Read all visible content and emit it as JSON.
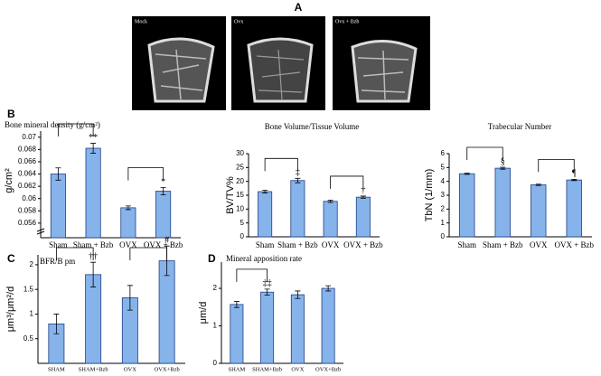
{
  "panel_a": {
    "label": "A",
    "images": [
      {
        "label": "Mock"
      },
      {
        "label": "Ovx"
      },
      {
        "label": "Ovx + Bzb"
      }
    ]
  },
  "chart_data": [
    {
      "type": "bar",
      "panel": "B",
      "title": "Bone mineral density (g/cm²)",
      "y_label": "g/cm²",
      "categories": [
        "Sham",
        "Sham + Bzb",
        "OVX",
        "OVX + Bzb"
      ],
      "values": [
        0.064,
        0.0682,
        0.0585,
        0.0612
      ],
      "errors": [
        0.001,
        0.0008,
        0.0003,
        0.0006
      ],
      "annotations": [
        null,
        "**",
        null,
        "*"
      ],
      "brackets": [
        [
          0,
          1
        ],
        [
          2,
          3
        ]
      ],
      "ylim": [
        0.0548,
        0.071
      ],
      "yticks": [
        0.056,
        0.058,
        0.06,
        0.062,
        0.064,
        0.066,
        0.068,
        0.07
      ],
      "axis_break": true,
      "color": "#86b4ea",
      "edge": "#1f3f8a"
    },
    {
      "type": "bar",
      "title": "Bone Volume/Tissue Volume",
      "y_label": "BV/TV%",
      "categories": [
        "Sham",
        "Sham + Bzb",
        "OVX",
        "OVX + Bzb"
      ],
      "values": [
        16.3,
        20.3,
        12.8,
        14.3
      ],
      "errors": [
        0.5,
        0.8,
        0.4,
        0.4
      ],
      "annotations": [
        null,
        "‡",
        null,
        "†"
      ],
      "brackets": [
        [
          0,
          1
        ],
        [
          2,
          3
        ]
      ],
      "ylim": [
        0,
        30
      ],
      "yticks": [
        0,
        5,
        10,
        15,
        20,
        25,
        30
      ],
      "color": "#86b4ea",
      "edge": "#1f3f8a"
    },
    {
      "type": "bar",
      "title": "Trabecular Number",
      "y_label": "TbN (1/mm)",
      "categories": [
        "Sham",
        "Sham + Bzb",
        "OVX",
        "OVX + Bzb"
      ],
      "values": [
        4.55,
        4.95,
        3.75,
        4.1
      ],
      "errors": [
        0.05,
        0.07,
        0.05,
        0.05
      ],
      "annotations": [
        null,
        "§",
        null,
        "¶"
      ],
      "brackets": [
        [
          0,
          1
        ],
        [
          2,
          3
        ]
      ],
      "ylim": [
        0,
        6
      ],
      "yticks": [
        0,
        1,
        2,
        3,
        4,
        5,
        6
      ],
      "color": "#86b4ea",
      "edge": "#1f3f8a"
    },
    {
      "type": "bar",
      "panel": "C",
      "title": "BFR/B pm",
      "y_label": "μm³/μm²/d",
      "categories": [
        "SHAM",
        "SHAM+Bzb",
        "OVX",
        "OVX+Bzb"
      ],
      "values": [
        0.8,
        1.8,
        1.33,
        2.08
      ],
      "errors": [
        0.2,
        0.25,
        0.25,
        0.3
      ],
      "annotations": [
        null,
        "††",
        null,
        "#"
      ],
      "brackets": [
        [
          0,
          1
        ],
        [
          2,
          3
        ]
      ],
      "ylim": [
        0,
        2.2
      ],
      "yticks": [
        0.5,
        1,
        1.5,
        2
      ],
      "color": "#86b4ea",
      "edge": "#1f3f8a"
    },
    {
      "type": "bar",
      "panel": "D",
      "title": "Mineral apposition rate",
      "y_label": "μm/d",
      "categories": [
        "SHAM",
        "SHAM+Bzb",
        "OVX",
        "OVX+Bzb"
      ],
      "values": [
        1.57,
        1.9,
        1.83,
        2.0
      ],
      "errors": [
        0.08,
        0.08,
        0.1,
        0.07
      ],
      "annotations": [
        null,
        "‡‡",
        null,
        null
      ],
      "brackets": [
        [
          0,
          1
        ]
      ],
      "ylim": [
        0,
        2.7
      ],
      "yticks": [
        0,
        1,
        2
      ],
      "color": "#86b4ea",
      "edge": "#1f3f8a"
    }
  ]
}
